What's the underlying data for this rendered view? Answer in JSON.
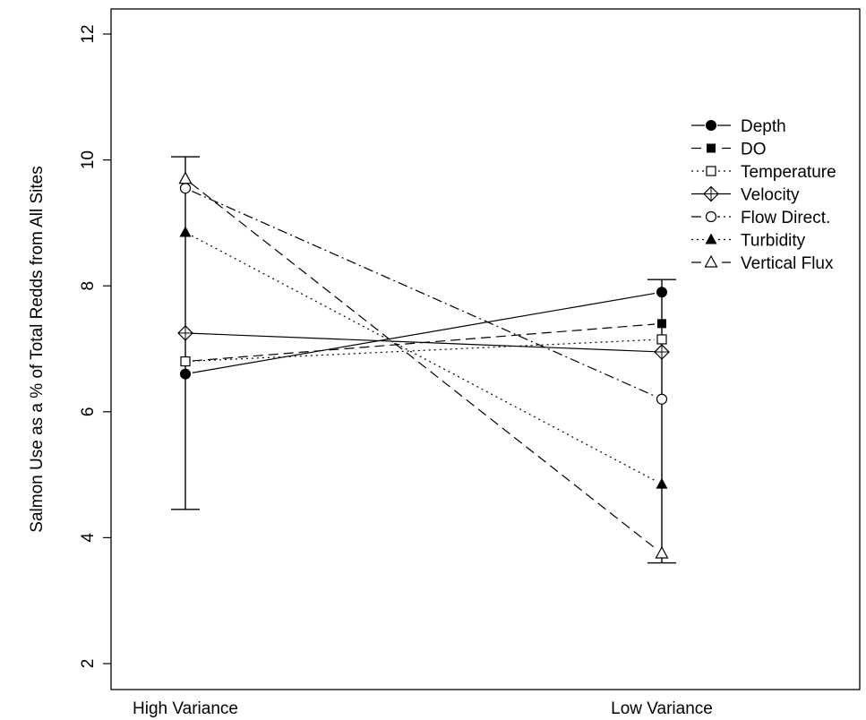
{
  "chart_data": {
    "type": "line",
    "title": "",
    "xlabel": "",
    "ylabel": "Salmon Use as a % of Total Redds from All Sites",
    "categories": [
      "High Variance",
      "Low Variance"
    ],
    "ylim": [
      1.5,
      12.5
    ],
    "yticks": [
      "2",
      "4",
      "6",
      "8",
      "10",
      "12"
    ],
    "grid": false,
    "legend_position": "top-right",
    "series": [
      {
        "name": "Depth",
        "values": [
          6.6,
          7.9
        ],
        "marker": "filled-circle",
        "dash": "solid"
      },
      {
        "name": "DO",
        "values": [
          6.8,
          7.4
        ],
        "marker": "filled-square",
        "dash": "long-dash"
      },
      {
        "name": "Temperature",
        "values": [
          6.8,
          7.15
        ],
        "marker": "open-square",
        "dash": "dotted"
      },
      {
        "name": "Velocity",
        "values": [
          7.25,
          6.95
        ],
        "marker": "open-diamond-plus",
        "dash": "solid"
      },
      {
        "name": "Flow Direct.",
        "values": [
          9.55,
          6.2
        ],
        "marker": "open-circle",
        "dash": "dash-dot"
      },
      {
        "name": "Turbidity",
        "values": [
          8.85,
          4.85
        ],
        "marker": "filled-triangle",
        "dash": "dotted"
      },
      {
        "name": "Vertical Flux",
        "values": [
          9.7,
          3.75
        ],
        "marker": "open-triangle",
        "dash": "long-dash"
      }
    ],
    "error_bars": [
      {
        "category": "High Variance",
        "low": 4.45,
        "high": 10.05
      },
      {
        "category": "Low Variance",
        "low": 3.6,
        "high": 8.1
      }
    ]
  }
}
